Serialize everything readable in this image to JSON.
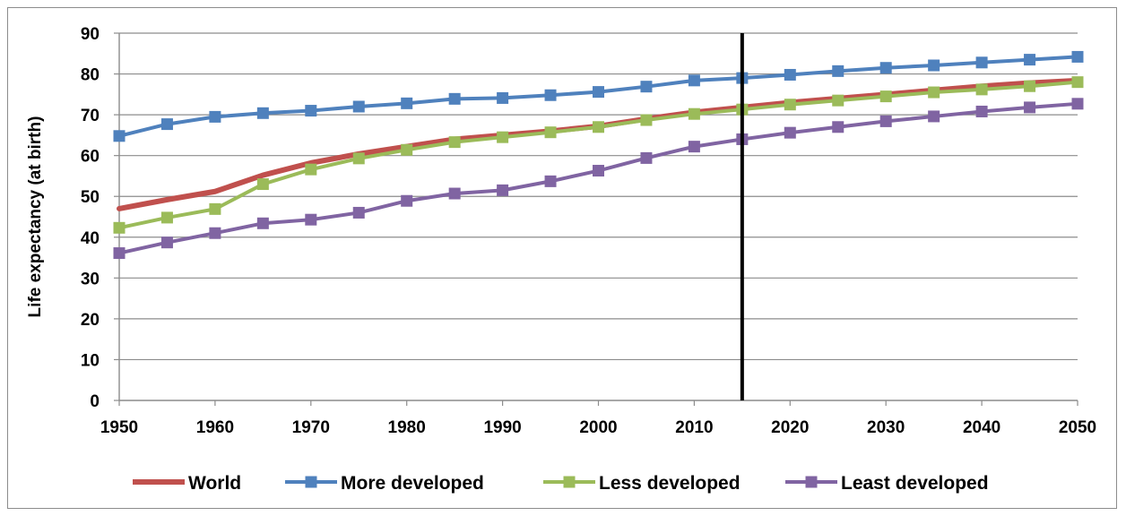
{
  "chart_data": {
    "type": "line",
    "title": "",
    "xlabel": "",
    "ylabel": "Life expectancy (at birth)",
    "xlim": [
      1950,
      2050
    ],
    "ylim": [
      0,
      90
    ],
    "x_ticks": [
      1950,
      1960,
      1970,
      1980,
      1990,
      2000,
      2010,
      2020,
      2030,
      2040,
      2050
    ],
    "y_ticks": [
      0,
      10,
      20,
      30,
      40,
      50,
      60,
      70,
      80,
      90
    ],
    "grid": "horizontal",
    "legend_position": "bottom",
    "reference_line_x": 2015,
    "x": [
      1950,
      1955,
      1960,
      1965,
      1970,
      1975,
      1980,
      1985,
      1990,
      1995,
      2000,
      2005,
      2010,
      2015,
      2020,
      2025,
      2030,
      2035,
      2040,
      2045,
      2050
    ],
    "series": [
      {
        "name": "World",
        "color": "#c0504d",
        "marker": "none",
        "values": [
          47,
          49.2,
          51.2,
          55.2,
          58.2,
          60.4,
          62.2,
          64,
          65,
          66,
          67.2,
          69,
          70.6,
          71.8,
          73,
          74,
          75,
          76,
          77,
          77.8,
          78.4
        ]
      },
      {
        "name": "More developed",
        "color": "#4f81bd",
        "marker": "square",
        "values": [
          64.8,
          67.7,
          69.5,
          70.4,
          71,
          72,
          72.8,
          73.9,
          74.1,
          74.8,
          75.6,
          76.9,
          78.4,
          79,
          79.8,
          80.7,
          81.5,
          82.1,
          82.8,
          83.5,
          84.2
        ]
      },
      {
        "name": "Less developed",
        "color": "#9bbb59",
        "marker": "square",
        "values": [
          42.3,
          44.8,
          46.9,
          53,
          56.6,
          59.3,
          61.4,
          63.3,
          64.5,
          65.7,
          67,
          68.7,
          70.2,
          71.3,
          72.5,
          73.5,
          74.5,
          75.5,
          76.2,
          77,
          78
        ]
      },
      {
        "name": "Least developed",
        "color": "#8064a2",
        "marker": "square",
        "values": [
          36.1,
          38.7,
          41,
          43.4,
          44.3,
          46,
          48.9,
          50.7,
          51.5,
          53.7,
          56.3,
          59.4,
          62.2,
          64,
          65.6,
          67,
          68.4,
          69.6,
          70.8,
          71.8,
          72.7
        ]
      }
    ]
  }
}
